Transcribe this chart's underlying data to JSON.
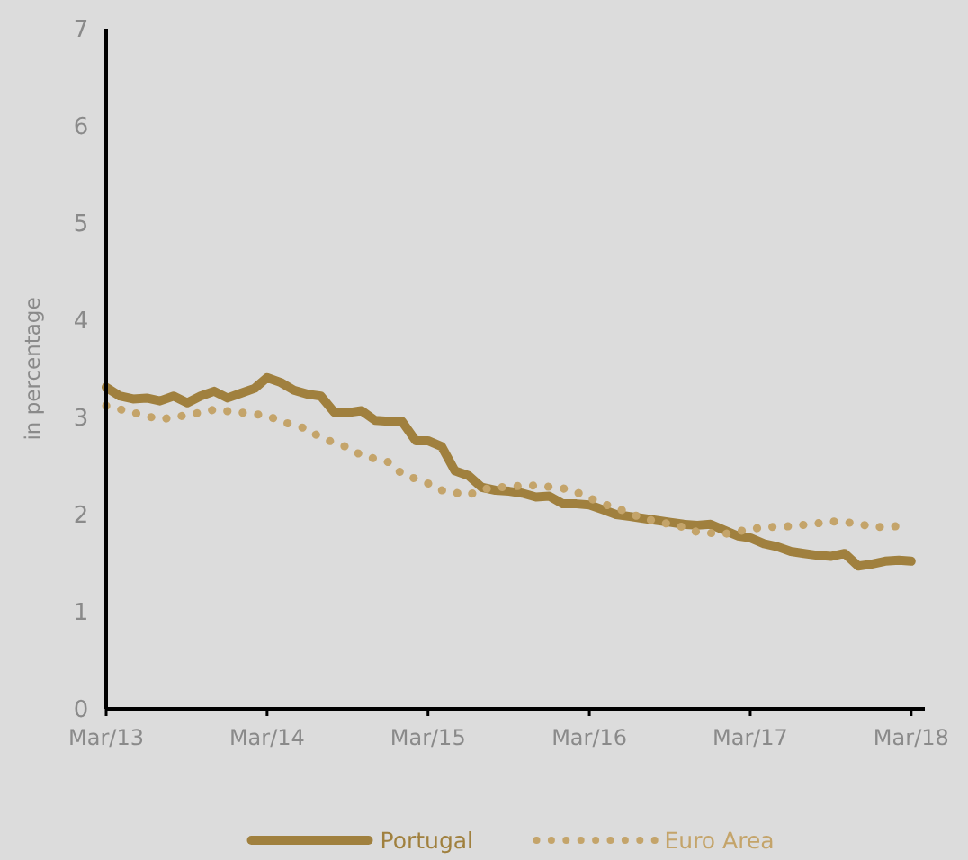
{
  "chart_data": {
    "type": "line",
    "ylabel": "in percentage",
    "ylim": [
      0,
      7
    ],
    "yticks": [
      0,
      1,
      2,
      3,
      4,
      5,
      6,
      7
    ],
    "xlim": [
      "2013-03",
      "2018-04"
    ],
    "xticks": [
      {
        "value": "2013-03",
        "label": "Mar/13"
      },
      {
        "value": "2014-03",
        "label": "Mar/14"
      },
      {
        "value": "2015-03",
        "label": "Mar/15"
      },
      {
        "value": "2016-03",
        "label": "Mar/16"
      },
      {
        "value": "2017-03",
        "label": "Mar/17"
      },
      {
        "value": "2018-03",
        "label": "Mar/18"
      }
    ],
    "grid": false,
    "legend": "bottom",
    "marker": "none",
    "x": [
      "2013-03",
      "2013-04",
      "2013-05",
      "2013-06",
      "2013-07",
      "2013-08",
      "2013-09",
      "2013-10",
      "2013-11",
      "2013-12",
      "2014-01",
      "2014-02",
      "2014-03",
      "2014-04",
      "2014-05",
      "2014-06",
      "2014-07",
      "2014-08",
      "2014-09",
      "2014-10",
      "2014-11",
      "2014-12",
      "2015-01",
      "2015-02",
      "2015-03",
      "2015-04",
      "2015-05",
      "2015-06",
      "2015-07",
      "2015-08",
      "2015-09",
      "2015-10",
      "2015-11",
      "2015-12",
      "2016-01",
      "2016-02",
      "2016-03",
      "2016-04",
      "2016-05",
      "2016-06",
      "2016-07",
      "2016-08",
      "2016-09",
      "2016-10",
      "2016-11",
      "2016-12",
      "2017-01",
      "2017-02",
      "2017-03",
      "2017-04",
      "2017-05",
      "2017-06",
      "2017-07",
      "2017-08",
      "2017-09",
      "2017-10",
      "2017-11",
      "2017-12",
      "2018-01",
      "2018-02",
      "2018-03"
    ],
    "series": [
      {
        "name": "Portugal",
        "color": "#a0803e",
        "line_style": "solid",
        "values": [
          3.31,
          3.22,
          3.19,
          3.2,
          3.17,
          3.22,
          3.15,
          3.22,
          3.27,
          3.2,
          3.25,
          3.3,
          3.41,
          3.36,
          3.28,
          3.24,
          3.22,
          3.05,
          3.05,
          3.07,
          2.97,
          2.96,
          2.96,
          2.76,
          2.76,
          2.7,
          2.45,
          2.4,
          2.28,
          2.25,
          2.24,
          2.22,
          2.18,
          2.19,
          2.11,
          2.11,
          2.1,
          2.05,
          2.0,
          1.98,
          1.96,
          1.94,
          1.92,
          1.9,
          1.89,
          1.9,
          1.84,
          1.78,
          1.76,
          1.7,
          1.67,
          1.62,
          1.6,
          1.58,
          1.57,
          1.6,
          1.47,
          1.49,
          1.52,
          1.53,
          1.52
        ]
      },
      {
        "name": "Euro Area",
        "color": "#c4a46a",
        "line_style": "dotted",
        "x": [
          "2013-03",
          "2013-05",
          "2013-07",
          "2013-08",
          "2013-10",
          "2013-11",
          "2014-01",
          "2014-03",
          "2014-04",
          "2014-06",
          "2014-07",
          "2014-09",
          "2014-10",
          "2014-12",
          "2015-01",
          "2015-03",
          "2015-04",
          "2015-06",
          "2015-07",
          "2015-09",
          "2015-11",
          "2016-01",
          "2016-02",
          "2016-04",
          "2016-05",
          "2016-07",
          "2016-08",
          "2016-10",
          "2016-11",
          "2017-01",
          "2017-03",
          "2017-04",
          "2017-06",
          "2017-08",
          "2017-09",
          "2017-11",
          "2017-12",
          "2018-02"
        ],
        "values": [
          3.12,
          3.05,
          2.98,
          3.0,
          3.05,
          3.08,
          3.05,
          3.02,
          2.96,
          2.88,
          2.79,
          2.69,
          2.61,
          2.54,
          2.42,
          2.32,
          2.25,
          2.2,
          2.26,
          2.29,
          2.3,
          2.27,
          2.23,
          2.11,
          2.07,
          1.96,
          1.93,
          1.87,
          1.82,
          1.8,
          1.85,
          1.87,
          1.88,
          1.91,
          1.93,
          1.91,
          1.87,
          1.88
        ]
      }
    ]
  }
}
